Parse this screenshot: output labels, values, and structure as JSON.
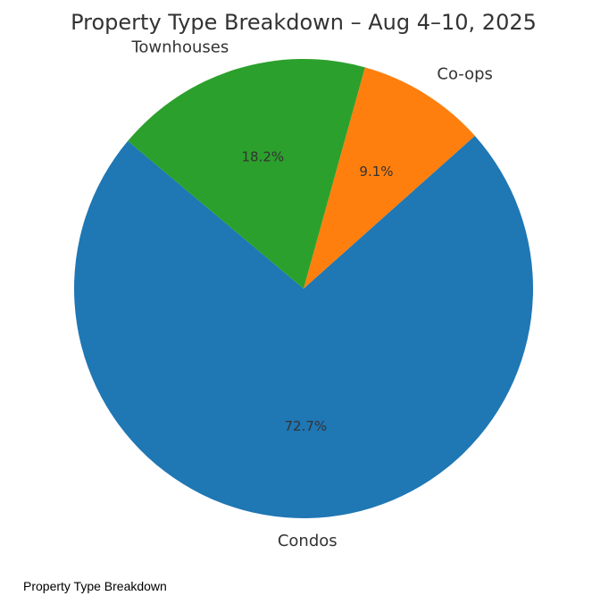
{
  "chart_data": {
    "type": "pie",
    "title": "Property Type Breakdown – Aug 4–10, 2025",
    "slices": [
      {
        "label": "Condos",
        "value": 72.7,
        "pct_label": "72.7%",
        "color": "#1f77b4"
      },
      {
        "label": "Co-ops",
        "value": 9.1,
        "pct_label": "9.1%",
        "color": "#ff7f0e"
      },
      {
        "label": "Townhouses",
        "value": 18.2,
        "pct_label": "18.2%",
        "color": "#2ca02c"
      }
    ]
  },
  "caption": "Property Type Breakdown"
}
